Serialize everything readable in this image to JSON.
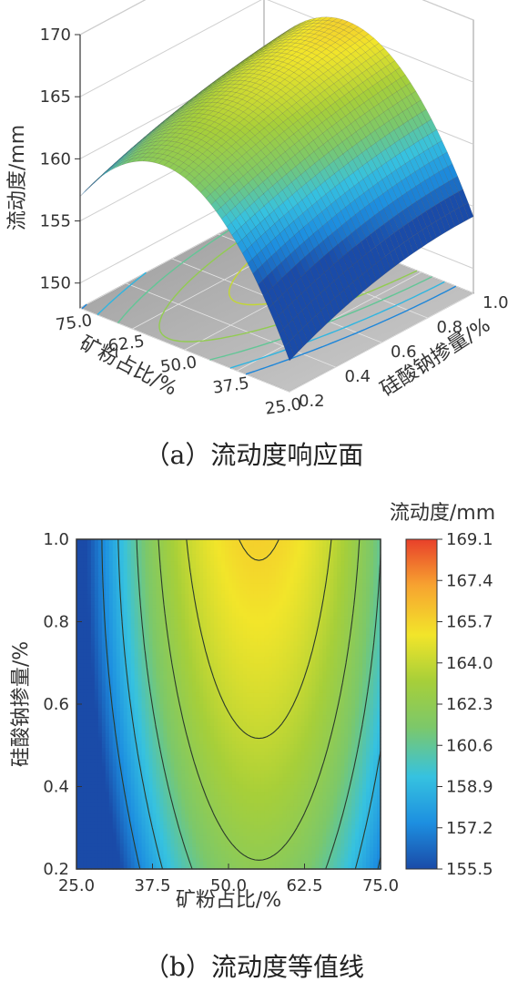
{
  "figure": {
    "caption_a": "（a）流动度响应面",
    "caption_b": "（b）流动度等值线"
  },
  "chart_data": [
    {
      "type": "surface",
      "title": "",
      "zlabel": "流动度/mm",
      "xlabel": "矿粉占比/%",
      "ylabel": "硅酸钠掺量/%",
      "z_ticks": [
        "150",
        "155",
        "160",
        "165",
        "170"
      ],
      "x_ticks": [
        "75.0",
        "62.5",
        "50.0",
        "37.5",
        "25.0"
      ],
      "y_ticks": [
        "0.2",
        "0.4",
        "0.6",
        "0.8",
        "1.0"
      ],
      "xlim": [
        25,
        75
      ],
      "ylim": [
        0.2,
        1.0
      ],
      "zlim": [
        148,
        170
      ],
      "model": "z = 164.4 + 4.6*y - 7.7*((x-55)/25)^2 - 2.5*(y-0.6)^2*(1 + ((x-55)/25)^2)",
      "grid": true
    },
    {
      "type": "contour",
      "title": "",
      "colorbar_title": "流动度/mm",
      "xlabel": "矿粉占比/%",
      "ylabel": "硅酸钠掺量/%",
      "x_ticks": [
        "25.0",
        "37.5",
        "50.0",
        "62.5",
        "75.0"
      ],
      "y_ticks": [
        "0.2",
        "0.4",
        "0.6",
        "0.8",
        "1.0"
      ],
      "xlim": [
        25,
        75
      ],
      "ylim": [
        0.2,
        1.0
      ],
      "colorbar_ticks": [
        "169.1",
        "167.4",
        "165.7",
        "164.0",
        "162.3",
        "160.6",
        "158.9",
        "157.2",
        "155.5"
      ],
      "colorbar_range": [
        155.5,
        169.1
      ],
      "contour_levels": [
        157.2,
        158.9,
        160.6,
        162.3,
        164.0,
        165.7,
        167.4
      ],
      "colormap": [
        "#1a4ba8",
        "#1d8fe0",
        "#36c2e0",
        "#7cc86a",
        "#a7cf39",
        "#f2e52a",
        "#f7a330",
        "#e8402a"
      ]
    }
  ]
}
